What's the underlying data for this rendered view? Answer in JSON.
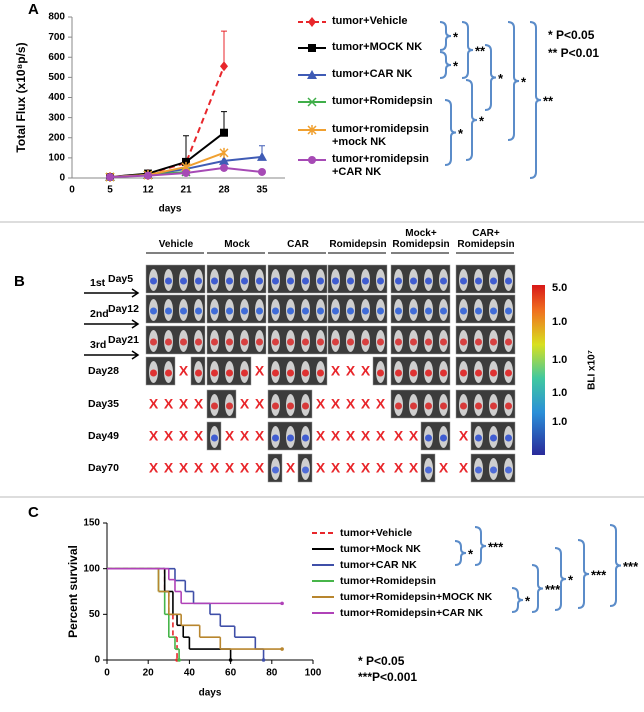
{
  "chart_data": [
    {
      "type": "line",
      "panel_label": "A",
      "y_label": "Total Flux (x10⁸p/s)",
      "x_label": "days",
      "categories": [
        "0",
        "5",
        "12",
        "21",
        "28",
        "35"
      ],
      "ylim": [
        0,
        800
      ],
      "yticks": [
        0,
        100,
        200,
        300,
        400,
        500,
        600,
        700,
        800
      ],
      "series": [
        {
          "name": "tumor+Vehicle",
          "color": "#e8262b",
          "marker": "diamond",
          "dash": true,
          "values": [
            null,
            5,
            20,
            75,
            555,
            null
          ],
          "errors": [
            null,
            null,
            null,
            null,
            175,
            null
          ]
        },
        {
          "name": "tumor+MOCK NK",
          "color": "#000000",
          "marker": "square",
          "values": [
            null,
            5,
            22,
            80,
            225,
            null
          ],
          "errors": [
            null,
            null,
            null,
            130,
            105,
            null
          ]
        },
        {
          "name": "tumor+CAR NK",
          "color": "#3f5bb5",
          "marker": "triangle",
          "values": [
            null,
            5,
            15,
            45,
            85,
            105
          ],
          "errors": [
            null,
            null,
            null,
            null,
            null,
            55
          ]
        },
        {
          "name": "tumor+Romidepsin",
          "color": "#3fae49",
          "marker": "x",
          "values": [
            null,
            5,
            15,
            30,
            null,
            null
          ]
        },
        {
          "name": "tumor+romidepsin +mock NK",
          "color": "#f0a030",
          "marker": "asterisk",
          "values": [
            null,
            5,
            15,
            55,
            125,
            null
          ]
        },
        {
          "name": "tumor+romidepsin +CAR NK",
          "color": "#a64ab5",
          "marker": "circle",
          "values": [
            null,
            5,
            12,
            25,
            50,
            30
          ]
        }
      ],
      "annotations": [
        {
          "text": "*"
        },
        {
          "text": "*"
        },
        {
          "text": "**"
        },
        {
          "text": "*"
        },
        {
          "text": "*"
        },
        {
          "text": "**"
        },
        {
          "text": "*"
        },
        {
          "text": "*",
          "color": "#e8262b"
        }
      ],
      "notes": [
        "* P<0.05",
        "** P<0.01"
      ]
    },
    {
      "type": "step",
      "panel_label": "C",
      "y_label": "Percent survival",
      "x_label": "days",
      "xlim": [
        0,
        100
      ],
      "xticks": [
        0,
        20,
        40,
        60,
        80,
        100
      ],
      "ylim": [
        0,
        150
      ],
      "yticks": [
        0,
        50,
        100,
        150
      ],
      "series": [
        {
          "name": "tumor+Vehicle",
          "color": "#e8262b",
          "dash": true,
          "x": [
            0,
            28,
            30,
            32,
            34
          ],
          "values": [
            100,
            75,
            50,
            25,
            0
          ]
        },
        {
          "name": "tumor+Mock NK",
          "color": "#000000",
          "x": [
            0,
            28,
            32,
            34,
            37,
            40,
            60
          ],
          "values": [
            100,
            75,
            50,
            38,
            25,
            12,
            0
          ]
        },
        {
          "name": "tumor+CAR NK",
          "color": "#3f4fa8",
          "x": [
            0,
            33,
            38,
            42,
            50,
            55,
            62,
            72,
            76
          ],
          "values": [
            100,
            87,
            75,
            62,
            50,
            37,
            25,
            12,
            0
          ]
        },
        {
          "name": "tumor+Romidepsin",
          "color": "#47b54a",
          "x": [
            0,
            25,
            28,
            30,
            33,
            35
          ],
          "values": [
            100,
            75,
            50,
            25,
            12,
            0
          ]
        },
        {
          "name": "tumor+Romidepsin+MOCK NK",
          "color": "#b8862e",
          "x": [
            0,
            25,
            30,
            36,
            45,
            55,
            85
          ],
          "values": [
            100,
            75,
            50,
            38,
            25,
            12,
            12
          ]
        },
        {
          "name": "tumor+Romidepsin+CAR NK",
          "color": "#b042b8",
          "x": [
            0,
            30,
            33,
            36,
            85
          ],
          "values": [
            100,
            88,
            75,
            62,
            62
          ]
        }
      ],
      "annotations": [
        {
          "text": "*"
        },
        {
          "text": "***"
        },
        {
          "text": "*"
        },
        {
          "text": "***"
        },
        {
          "text": "*"
        },
        {
          "text": "***"
        },
        {
          "text": "***"
        }
      ],
      "notes": [
        "* P<0.05",
        "***P<0.001"
      ]
    }
  ],
  "panel_b": {
    "panel_label": "B",
    "columns": [
      "Vehicle",
      "Mock",
      "CAR",
      "Romidepsin",
      "Mock+ Romidepsin",
      "CAR+ Romidepsin"
    ],
    "arrows": [
      "1st",
      "2nd",
      "3rd"
    ],
    "rows": [
      {
        "label": "Day5",
        "cells": [
          [
            null,
            null,
            null,
            null
          ],
          [
            null,
            null,
            null,
            null
          ],
          [
            null,
            null,
            null,
            null
          ],
          [
            null,
            null,
            null,
            null
          ],
          [
            null,
            null,
            null,
            null
          ],
          [
            null,
            null,
            null,
            null
          ]
        ]
      },
      {
        "label": "Day12",
        "cells": [
          [
            null,
            null,
            null,
            null
          ],
          [
            null,
            null,
            null,
            null
          ],
          [
            null,
            null,
            null,
            null
          ],
          [
            null,
            null,
            null,
            null
          ],
          [
            null,
            null,
            null,
            null
          ],
          [
            null,
            null,
            null,
            null
          ]
        ]
      },
      {
        "label": "Day21",
        "cells": [
          [
            null,
            null,
            null,
            null
          ],
          [
            null,
            null,
            null,
            null
          ],
          [
            null,
            null,
            null,
            null
          ],
          [
            null,
            null,
            null,
            null
          ],
          [
            null,
            null,
            null,
            null
          ],
          [
            null,
            null,
            null,
            null
          ]
        ]
      },
      {
        "label": "Day28",
        "cells": [
          [
            null,
            null,
            "X",
            null
          ],
          [
            null,
            null,
            null,
            "X"
          ],
          [
            null,
            null,
            null,
            null
          ],
          [
            "X",
            "X",
            "X",
            null
          ],
          [
            null,
            null,
            null,
            null
          ],
          [
            null,
            null,
            null,
            null
          ]
        ]
      },
      {
        "label": "Day35",
        "cells": [
          [
            "X",
            "X",
            "X",
            "X"
          ],
          [
            null,
            null,
            "X",
            "X"
          ],
          [
            null,
            null,
            null,
            "X"
          ],
          [
            "X",
            "X",
            "X",
            "X"
          ],
          [
            null,
            null,
            null,
            null
          ],
          [
            null,
            null,
            null,
            null
          ]
        ]
      },
      {
        "label": "Day49",
        "cells": [
          [
            "X",
            "X",
            "X",
            "X"
          ],
          [
            null,
            "X",
            "X",
            "X"
          ],
          [
            null,
            null,
            null,
            "X"
          ],
          [
            "X",
            "X",
            "X",
            "X"
          ],
          [
            "X",
            "X",
            null,
            null
          ],
          [
            "X",
            null,
            null,
            null
          ]
        ]
      },
      {
        "label": "Day70",
        "cells": [
          [
            "X",
            "X",
            "X",
            "X"
          ],
          [
            "X",
            "X",
            "X",
            "X"
          ],
          [
            null,
            "X",
            null,
            "X"
          ],
          [
            "X",
            "X",
            "X",
            "X"
          ],
          [
            "X",
            "X",
            null,
            "X"
          ],
          [
            "X",
            null,
            null,
            null
          ]
        ]
      }
    ],
    "colorbar_ticks": [
      "5.0",
      "1.0",
      "1.0",
      "1.0",
      "1.0"
    ],
    "colorbar_label": "BLI x10⁷"
  }
}
